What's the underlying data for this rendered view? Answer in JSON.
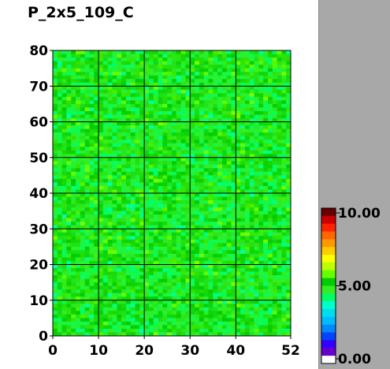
{
  "chart_data": {
    "type": "heatmap",
    "title": "P_2x5_109_C",
    "x_ticks": [
      "0",
      "10",
      "20",
      "30",
      "40",
      "52"
    ],
    "y_ticks": [
      "80",
      "70",
      "60",
      "50",
      "40",
      "30",
      "20",
      "10",
      "0"
    ],
    "xlim": [
      0,
      52
    ],
    "ylim": [
      0,
      80
    ],
    "grid": true,
    "color_range": [
      0,
      10
    ],
    "colorbar_ticks": [
      "10.00",
      "5.00",
      "0.00"
    ],
    "cell_value_typical": 5.0,
    "cell_value_spread": [
      3.8,
      6.0
    ],
    "colormap": [
      "#ffffff",
      "#6600cc",
      "#3300ff",
      "#0044ff",
      "#0088ff",
      "#00bbff",
      "#00ddee",
      "#00ffcc",
      "#00ff66",
      "#33ee22",
      "#00cc00",
      "#66ff00",
      "#bbff00",
      "#ffff00",
      "#ffcc00",
      "#ff9900",
      "#ff6600",
      "#ff2200",
      "#cc0000",
      "#660000"
    ]
  }
}
